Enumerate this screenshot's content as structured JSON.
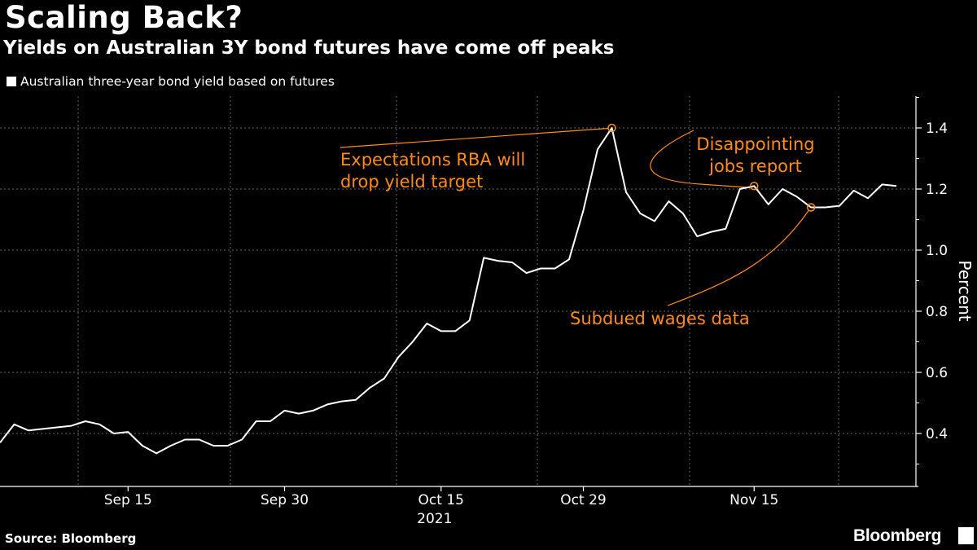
{
  "header": {
    "title": "Scaling Back?",
    "subtitle": "Yields on Australian 3Y bond futures have come off peaks"
  },
  "legend": {
    "label": "Australian three-year bond yield based on futures"
  },
  "footer": {
    "source": "Source: Bloomberg",
    "brand": "Bloomberg"
  },
  "colors": {
    "background": "#000000",
    "line": "#ffffff",
    "annotation": "#ff8c1a",
    "grid": "#666666"
  },
  "chart_data": {
    "type": "line",
    "title": "Scaling Back?",
    "subtitle": "Yields on Australian 3Y bond futures have come off peaks",
    "xlabel": "",
    "ylabel": "Percent",
    "year_label": "2021",
    "ylim": [
      0.26,
      1.5
    ],
    "yticks": [
      0.4,
      0.6,
      0.8,
      1.0,
      1.2,
      1.4
    ],
    "ytick_labels": [
      "0.4",
      "0.6",
      "0.8",
      "1.0",
      "1.2",
      "1.4"
    ],
    "xticks": [
      {
        "label": "Sep 15",
        "index": 9
      },
      {
        "label": "Sep 30",
        "index": 20
      },
      {
        "label": "Oct 15",
        "index": 31
      },
      {
        "label": "Oct 29",
        "index": 41
      },
      {
        "label": "Nov 15",
        "index": 53
      }
    ],
    "grid": true,
    "legend_position": "top-left",
    "series": [
      {
        "name": "Australian three-year bond yield based on futures",
        "values": [
          0.37,
          0.43,
          0.41,
          0.415,
          0.42,
          0.425,
          0.44,
          0.43,
          0.4,
          0.405,
          0.36,
          0.335,
          0.36,
          0.38,
          0.38,
          0.36,
          0.36,
          0.38,
          0.44,
          0.44,
          0.475,
          0.465,
          0.475,
          0.495,
          0.505,
          0.51,
          0.55,
          0.58,
          0.65,
          0.7,
          0.76,
          0.735,
          0.735,
          0.77,
          0.975,
          0.965,
          0.96,
          0.925,
          0.94,
          0.94,
          0.97,
          1.13,
          1.33,
          1.4,
          1.19,
          1.12,
          1.095,
          1.16,
          1.12,
          1.045,
          1.06,
          1.07,
          1.2,
          1.21,
          1.15,
          1.2,
          1.175,
          1.14,
          1.14,
          1.145,
          1.195,
          1.17,
          1.215,
          1.21
        ]
      }
    ],
    "annotations": [
      {
        "text_lines": [
          "Expectations RBA will",
          "drop yield target"
        ],
        "index": 43
      },
      {
        "text_lines": [
          "Disappointing",
          "jobs report"
        ],
        "index": 53
      },
      {
        "text_lines": [
          "Subdued wages data"
        ],
        "index": 57
      }
    ]
  }
}
